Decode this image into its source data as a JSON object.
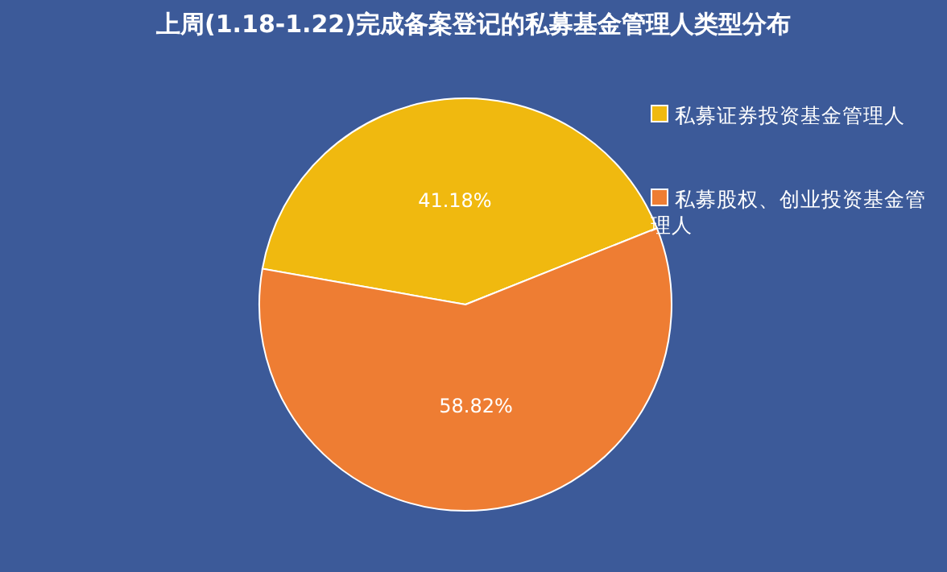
{
  "chart_data": {
    "type": "pie",
    "title": "上周(1.18-1.22)完成备案登记的私募基金管理人类型分布",
    "categories": [
      "私募证券投资基金管理人",
      "私募股权、创业投资基金管理人"
    ],
    "values": [
      41.18,
      58.82
    ],
    "colors": [
      "#f0b90f",
      "#ee7d33"
    ],
    "value_labels": [
      "41.18%",
      "58.82%"
    ],
    "legend": "right"
  }
}
